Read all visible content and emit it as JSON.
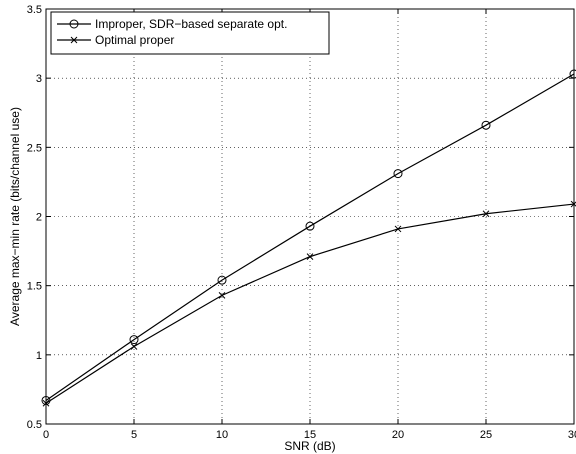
{
  "chart_data": {
    "type": "line",
    "title": "",
    "xlabel": "SNR (dB)",
    "ylabel": "Average max−min rate (bits/channel use)",
    "x": [
      0,
      5,
      10,
      15,
      20,
      25,
      30
    ],
    "xlim": [
      0,
      30
    ],
    "ylim": [
      0.5,
      3.5
    ],
    "xticks": [
      0,
      5,
      10,
      15,
      20,
      25,
      30
    ],
    "yticks": [
      0.5,
      1,
      1.5,
      2,
      2.5,
      3,
      3.5
    ],
    "xtick_labels": [
      "0",
      "5",
      "10",
      "15",
      "20",
      "25",
      "30"
    ],
    "ytick_labels": [
      "0.5",
      "1",
      "1.5",
      "2",
      "2.5",
      "3",
      "3.5"
    ],
    "grid": true,
    "legend_position": "top-left",
    "series": [
      {
        "name": "Improper, SDR−based separate opt.",
        "marker": "circle",
        "color": "#000000",
        "values": [
          0.67,
          1.11,
          1.54,
          1.93,
          2.31,
          2.66,
          3.03
        ]
      },
      {
        "name": "Optimal proper",
        "marker": "x",
        "color": "#000000",
        "values": [
          0.65,
          1.06,
          1.43,
          1.71,
          1.91,
          2.02,
          2.09
        ]
      }
    ]
  }
}
